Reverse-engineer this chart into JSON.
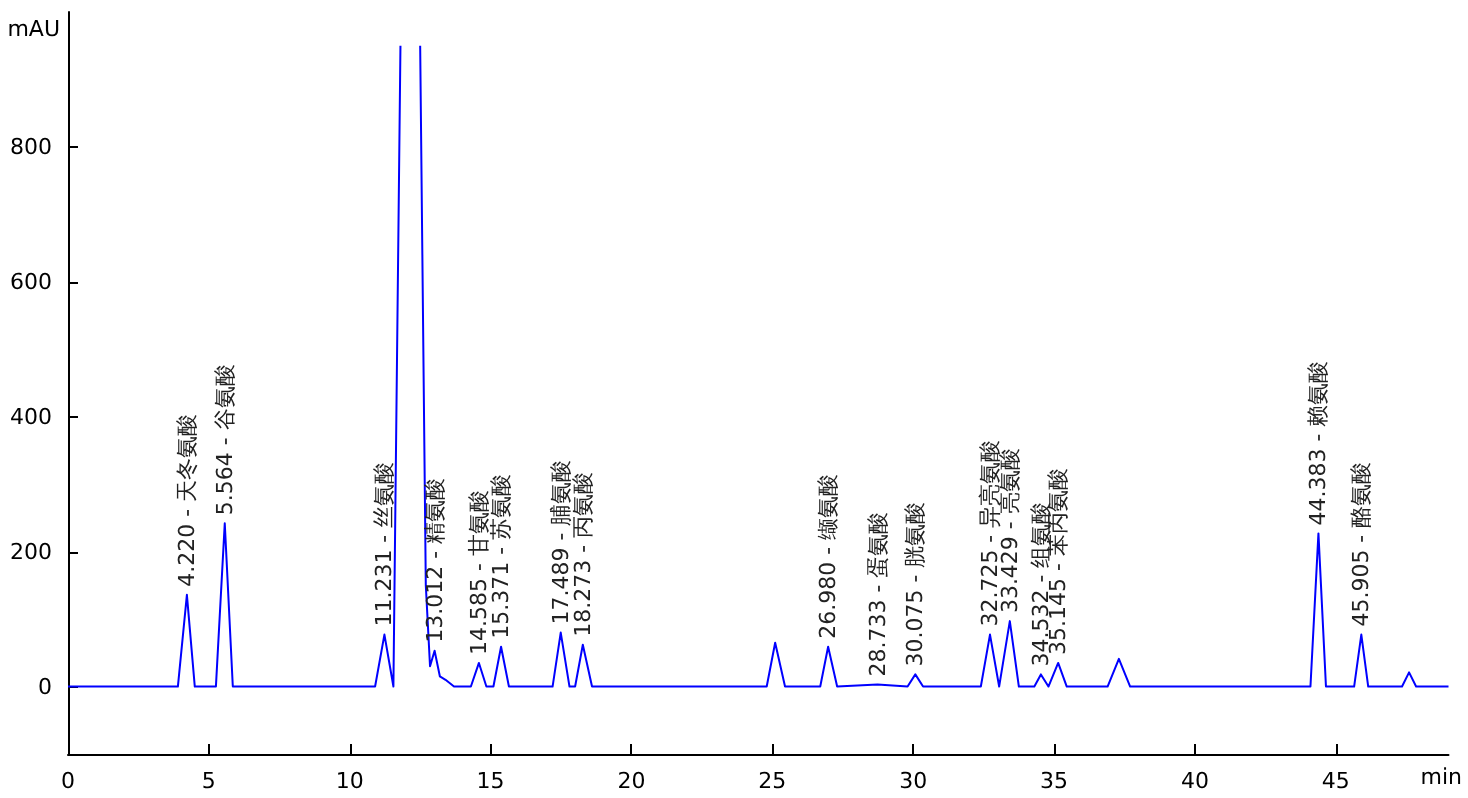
{
  "chart_data": {
    "type": "line",
    "xlabel": "min",
    "ylabel": "mAU",
    "xlim": [
      0,
      49
    ],
    "xticks": [
      0,
      5,
      10,
      15,
      20,
      25,
      30,
      35,
      40,
      45
    ],
    "ylim": [
      -100,
      1000
    ],
    "yticks": [
      0,
      200,
      400,
      600,
      800
    ],
    "marker": "none",
    "line_style": "solid",
    "series": [
      {
        "color": "#0000ff",
        "x": [
          0,
          3.9,
          4.22,
          4.5,
          5.25,
          5.564,
          5.85,
          10.9,
          11.231,
          11.55,
          11.8,
          12.15,
          12.5,
          12.7,
          12.85,
          13.012,
          13.2,
          13.4,
          13.7,
          14.3,
          14.585,
          14.85,
          15.1,
          15.371,
          15.65,
          17.2,
          17.489,
          17.8,
          18.0,
          18.273,
          18.6,
          24.8,
          25.1,
          25.45,
          26.7,
          26.98,
          27.3,
          28.733,
          29.8,
          30.075,
          30.35,
          32.4,
          32.725,
          33.05,
          33.429,
          33.75,
          34.3,
          34.532,
          34.8,
          35.145,
          35.45,
          36.9,
          37.3,
          37.7,
          44.1,
          44.383,
          44.65,
          45.65,
          45.905,
          46.15,
          47.35,
          47.6,
          47.85,
          49
        ],
        "values": [
          0,
          0,
          136,
          0,
          0,
          242,
          0,
          0,
          77,
          0,
          950,
          null,
          950,
          150,
          30,
          53,
          15,
          10,
          0,
          0,
          35,
          0,
          0,
          59,
          0,
          0,
          80,
          0,
          0,
          62,
          0,
          0,
          65,
          0,
          0,
          59,
          0,
          3,
          0,
          18,
          0,
          0,
          77,
          0,
          97,
          0,
          0,
          18,
          0,
          35,
          0,
          0,
          41,
          0,
          0,
          227,
          0,
          0,
          77,
          0,
          0,
          21,
          0,
          0
        ]
      }
    ],
    "annotations": [
      {
        "text": "4.220 - 天冬氨酸",
        "x": 4.22,
        "y": 136
      },
      {
        "text": "5.564 - 谷氨酸",
        "x": 5.564,
        "y": 242
      },
      {
        "text": "11.231 - 丝氨酸",
        "x": 11.231,
        "y": 77
      },
      {
        "text": "13.012 - 精氨酸",
        "x": 13.012,
        "y": 53
      },
      {
        "text": "14.585 - 甘氨酸",
        "x": 14.585,
        "y": 35
      },
      {
        "text": "15.371 - 苏氨酸",
        "x": 15.371,
        "y": 59
      },
      {
        "text": "17.489 - 脯氨酸",
        "x": 17.489,
        "y": 80
      },
      {
        "text": "18.273 - 丙氨酸",
        "x": 18.273,
        "y": 62
      },
      {
        "text": "26.980 - 缬氨酸",
        "x": 26.98,
        "y": 59
      },
      {
        "text": "28.733 - 蛋氨酸",
        "x": 28.733,
        "y": 3
      },
      {
        "text": "30.075 - 胱氨酸",
        "x": 30.075,
        "y": 18
      },
      {
        "text": "32.725 - 异亮氨酸",
        "x": 32.725,
        "y": 77
      },
      {
        "text": "33.429 - 亮氨酸",
        "x": 33.429,
        "y": 97
      },
      {
        "text": "34.532 - 组氨酸",
        "x": 34.532,
        "y": 18
      },
      {
        "text": "35.145 - 苯丙氨酸",
        "x": 35.145,
        "y": 35
      },
      {
        "text": "44.383 - 赖氨酸",
        "x": 44.383,
        "y": 227
      },
      {
        "text": "45.905 - 酪氨酸",
        "x": 45.905,
        "y": 77
      }
    ]
  }
}
